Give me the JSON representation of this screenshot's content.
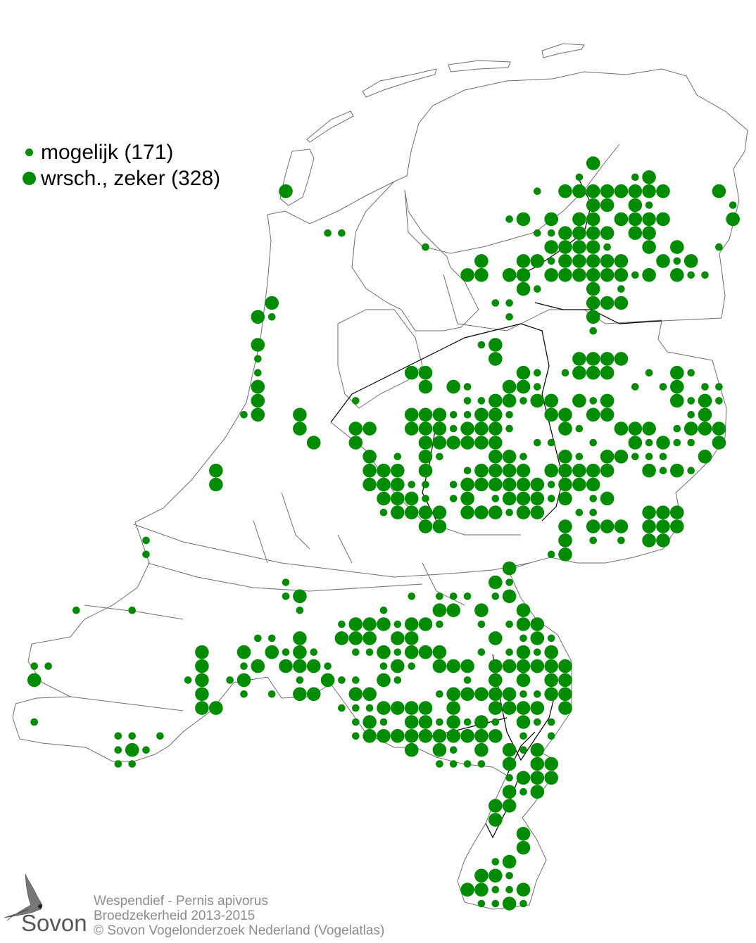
{
  "legend": {
    "items": [
      {
        "label": "mogelijk (171)",
        "category": "possible",
        "symbol": "small-dot"
      },
      {
        "label": "wrsch., zeker (328)",
        "category": "probable-certain",
        "symbol": "large-dot"
      }
    ]
  },
  "footer": {
    "species": "Wespendief - Pernis apivorus",
    "subject": "Broedzekerheid 2013-2015",
    "copyright": "© Sovon Vogelonderzoek Nederland (Vogelatlas)"
  },
  "logo": {
    "text": "Sovon",
    "icon": "swallow-icon"
  },
  "colors": {
    "dot": "#008c00",
    "outline": "#6e6e6e",
    "border": "#000000",
    "footer_text": "#8c8c8c"
  }
}
